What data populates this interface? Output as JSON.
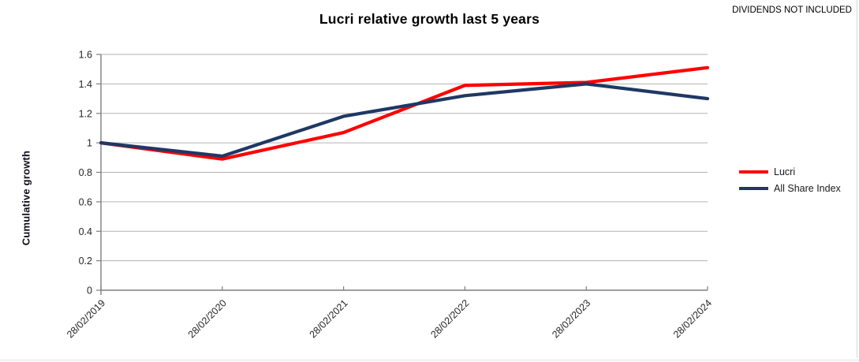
{
  "title": "Lucri relative growth last 5 years",
  "disclaimer": "DIVIDENDS NOT INCLUDED",
  "chart_data": {
    "type": "line",
    "title": "Lucri relative growth last 5 years",
    "xlabel": "",
    "ylabel": "Cumulative growth",
    "categories": [
      "28/02/2019",
      "28/02/2020",
      "28/02/2021",
      "28/02/2022",
      "28/02/2023",
      "28/02/2024"
    ],
    "series": [
      {
        "name": "Lucri",
        "color": "#fe0000",
        "values": [
          1.0,
          0.89,
          1.07,
          1.39,
          1.41,
          1.51
        ]
      },
      {
        "name": "All Share Index",
        "color": "#1f3864",
        "values": [
          1.0,
          0.91,
          1.18,
          1.32,
          1.4,
          1.3
        ]
      }
    ],
    "ylim": [
      0,
      1.6
    ],
    "ytick_labels": [
      "0",
      "0.2",
      "0.4",
      "0.6",
      "0.8",
      "1",
      "1.2",
      "1.4",
      "1.6"
    ],
    "grid": true,
    "legend_position": "right"
  },
  "colors": {
    "gridline": "#b3b3b3",
    "axis": "#7f7f7f",
    "tick_label": "#262626",
    "lucri": "#fe0000",
    "all_share_index": "#1f3864"
  }
}
